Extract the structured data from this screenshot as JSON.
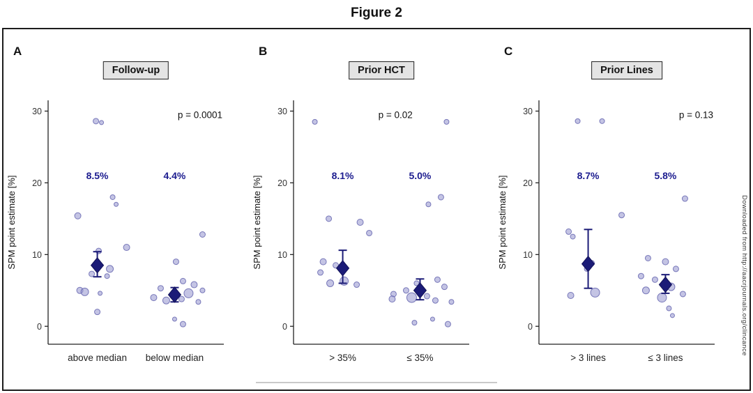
{
  "figure": {
    "title": "Figure 2",
    "watermark": "Downloaded from http://aacrjournals.org/clincance"
  },
  "chart_data": [
    {
      "type": "scatter",
      "panel": "A",
      "title": "Follow-up",
      "p_label": "p = 0.0001",
      "p_align": "right",
      "ylabel": "SPM point estimate [%]",
      "yticks": [
        0,
        10,
        20,
        30
      ],
      "ylim": [
        -2.5,
        31.5
      ],
      "grid": false,
      "categories": [
        "above median",
        "below median"
      ],
      "groups": [
        {
          "label": "above median",
          "mean": 8.5,
          "mean_label": "8.5%",
          "ci": [
            6.9,
            10.4
          ],
          "points": [
            {
              "y": 28.6,
              "dx": -2,
              "r": 4
            },
            {
              "y": 28.4,
              "dx": 6,
              "r": 3
            },
            {
              "y": 18.0,
              "dx": 22,
              "r": 3.5
            },
            {
              "y": 17.0,
              "dx": 27,
              "r": 3
            },
            {
              "y": 15.4,
              "dx": -28,
              "r": 4.5
            },
            {
              "y": 11.0,
              "dx": 42,
              "r": 4.5
            },
            {
              "y": 10.5,
              "dx": 2,
              "r": 4
            },
            {
              "y": 8.0,
              "dx": 18,
              "r": 5
            },
            {
              "y": 7.3,
              "dx": -8,
              "r": 4
            },
            {
              "y": 7.0,
              "dx": 14,
              "r": 3.5
            },
            {
              "y": 5.0,
              "dx": -25,
              "r": 4.5
            },
            {
              "y": 4.8,
              "dx": -18,
              "r": 5.5
            },
            {
              "y": 4.6,
              "dx": 4,
              "r": 3
            },
            {
              "y": 2.0,
              "dx": 0,
              "r": 4
            }
          ]
        },
        {
          "label": "below median",
          "mean": 4.4,
          "mean_label": "4.4%",
          "ci": [
            3.4,
            5.4
          ],
          "points": [
            {
              "y": 12.8,
              "dx": 40,
              "r": 4
            },
            {
              "y": 9.0,
              "dx": 2,
              "r": 4
            },
            {
              "y": 6.3,
              "dx": 12,
              "r": 4
            },
            {
              "y": 5.8,
              "dx": 28,
              "r": 4.5
            },
            {
              "y": 5.3,
              "dx": -20,
              "r": 4
            },
            {
              "y": 5.0,
              "dx": 40,
              "r": 3.5
            },
            {
              "y": 4.6,
              "dx": 20,
              "r": 6.5
            },
            {
              "y": 4.3,
              "dx": -2,
              "r": 5
            },
            {
              "y": 4.0,
              "dx": -30,
              "r": 4.5
            },
            {
              "y": 3.8,
              "dx": 10,
              "r": 4
            },
            {
              "y": 3.6,
              "dx": -12,
              "r": 5
            },
            {
              "y": 3.4,
              "dx": 34,
              "r": 3.5
            },
            {
              "y": 1.0,
              "dx": 0,
              "r": 3
            },
            {
              "y": 0.3,
              "dx": 12,
              "r": 4
            }
          ]
        }
      ]
    },
    {
      "type": "scatter",
      "panel": "B",
      "title": "Prior HCT",
      "p_label": "p = 0.02",
      "p_align": "center",
      "ylabel": "SPM point estimate [%]",
      "yticks": [
        0,
        10,
        20,
        30
      ],
      "ylim": [
        -2.5,
        31.5
      ],
      "grid": false,
      "categories": [
        "> 35%",
        "≤ 35%"
      ],
      "groups": [
        {
          "label": "> 35%",
          "mean": 8.1,
          "mean_label": "8.1%",
          "ci": [
            6.0,
            10.6
          ],
          "points": [
            {
              "y": 28.5,
              "dx": -40,
              "r": 3.5
            },
            {
              "y": 15.0,
              "dx": -20,
              "r": 4
            },
            {
              "y": 14.5,
              "dx": 25,
              "r": 4.5
            },
            {
              "y": 13.0,
              "dx": 38,
              "r": 4
            },
            {
              "y": 9.0,
              "dx": -28,
              "r": 4.5
            },
            {
              "y": 8.5,
              "dx": -10,
              "r": 4
            },
            {
              "y": 7.5,
              "dx": -32,
              "r": 4
            },
            {
              "y": 6.3,
              "dx": 2,
              "r": 6
            },
            {
              "y": 6.0,
              "dx": -18,
              "r": 5
            },
            {
              "y": 5.8,
              "dx": 20,
              "r": 4
            }
          ]
        },
        {
          "label": "≤ 35%",
          "mean": 5.0,
          "mean_label": "5.0%",
          "ci": [
            3.7,
            6.6
          ],
          "points": [
            {
              "y": 28.5,
              "dx": 38,
              "r": 3.5
            },
            {
              "y": 18.0,
              "dx": 30,
              "r": 4
            },
            {
              "y": 17.0,
              "dx": 12,
              "r": 3.5
            },
            {
              "y": 6.5,
              "dx": 25,
              "r": 4
            },
            {
              "y": 6.0,
              "dx": -5,
              "r": 3.5
            },
            {
              "y": 5.5,
              "dx": 35,
              "r": 4
            },
            {
              "y": 5.0,
              "dx": -20,
              "r": 4
            },
            {
              "y": 4.5,
              "dx": -38,
              "r": 4
            },
            {
              "y": 4.2,
              "dx": 10,
              "r": 4
            },
            {
              "y": 4.0,
              "dx": -12,
              "r": 7
            },
            {
              "y": 3.8,
              "dx": -40,
              "r": 4.5
            },
            {
              "y": 3.6,
              "dx": 22,
              "r": 4
            },
            {
              "y": 3.4,
              "dx": 45,
              "r": 3.5
            },
            {
              "y": 1.0,
              "dx": 18,
              "r": 3
            },
            {
              "y": 0.5,
              "dx": -8,
              "r": 3.5
            },
            {
              "y": 0.3,
              "dx": 40,
              "r": 4
            }
          ]
        }
      ]
    },
    {
      "type": "scatter",
      "panel": "C",
      "title": "Prior Lines",
      "p_label": "p = 0.13",
      "p_align": "right",
      "ylabel": "SPM point estimate [%]",
      "yticks": [
        0,
        10,
        20,
        30
      ],
      "ylim": [
        -2.5,
        31.5
      ],
      "grid": false,
      "categories": [
        "> 3 lines",
        "≤ 3 lines"
      ],
      "groups": [
        {
          "label": "> 3 lines",
          "mean": 8.7,
          "mean_label": "8.7%",
          "ci": [
            5.3,
            13.5
          ],
          "points": [
            {
              "y": 28.6,
              "dx": -15,
              "r": 3.5
            },
            {
              "y": 28.6,
              "dx": 20,
              "r": 3.5
            },
            {
              "y": 15.5,
              "dx": 48,
              "r": 4
            },
            {
              "y": 13.2,
              "dx": -28,
              "r": 4
            },
            {
              "y": 12.5,
              "dx": -22,
              "r": 3.5
            },
            {
              "y": 8.8,
              "dx": 5,
              "r": 4
            },
            {
              "y": 8.0,
              "dx": -2,
              "r": 3.5
            },
            {
              "y": 4.7,
              "dx": 10,
              "r": 6.5
            },
            {
              "y": 4.3,
              "dx": -25,
              "r": 4.5
            }
          ]
        },
        {
          "label": "≤ 3 lines",
          "mean": 5.8,
          "mean_label": "5.8%",
          "ci": [
            4.6,
            7.2
          ],
          "points": [
            {
              "y": 17.8,
              "dx": 28,
              "r": 4
            },
            {
              "y": 9.5,
              "dx": -25,
              "r": 4
            },
            {
              "y": 9.0,
              "dx": 0,
              "r": 4.5
            },
            {
              "y": 8.0,
              "dx": 15,
              "r": 4
            },
            {
              "y": 7.0,
              "dx": -35,
              "r": 4
            },
            {
              "y": 6.5,
              "dx": -15,
              "r": 4
            },
            {
              "y": 5.5,
              "dx": 8,
              "r": 5.5
            },
            {
              "y": 5.0,
              "dx": -28,
              "r": 5
            },
            {
              "y": 4.5,
              "dx": 25,
              "r": 4
            },
            {
              "y": 4.0,
              "dx": -5,
              "r": 6.5
            },
            {
              "y": 2.5,
              "dx": 5,
              "r": 3.5
            },
            {
              "y": 1.5,
              "dx": 10,
              "r": 3
            }
          ]
        }
      ]
    }
  ]
}
